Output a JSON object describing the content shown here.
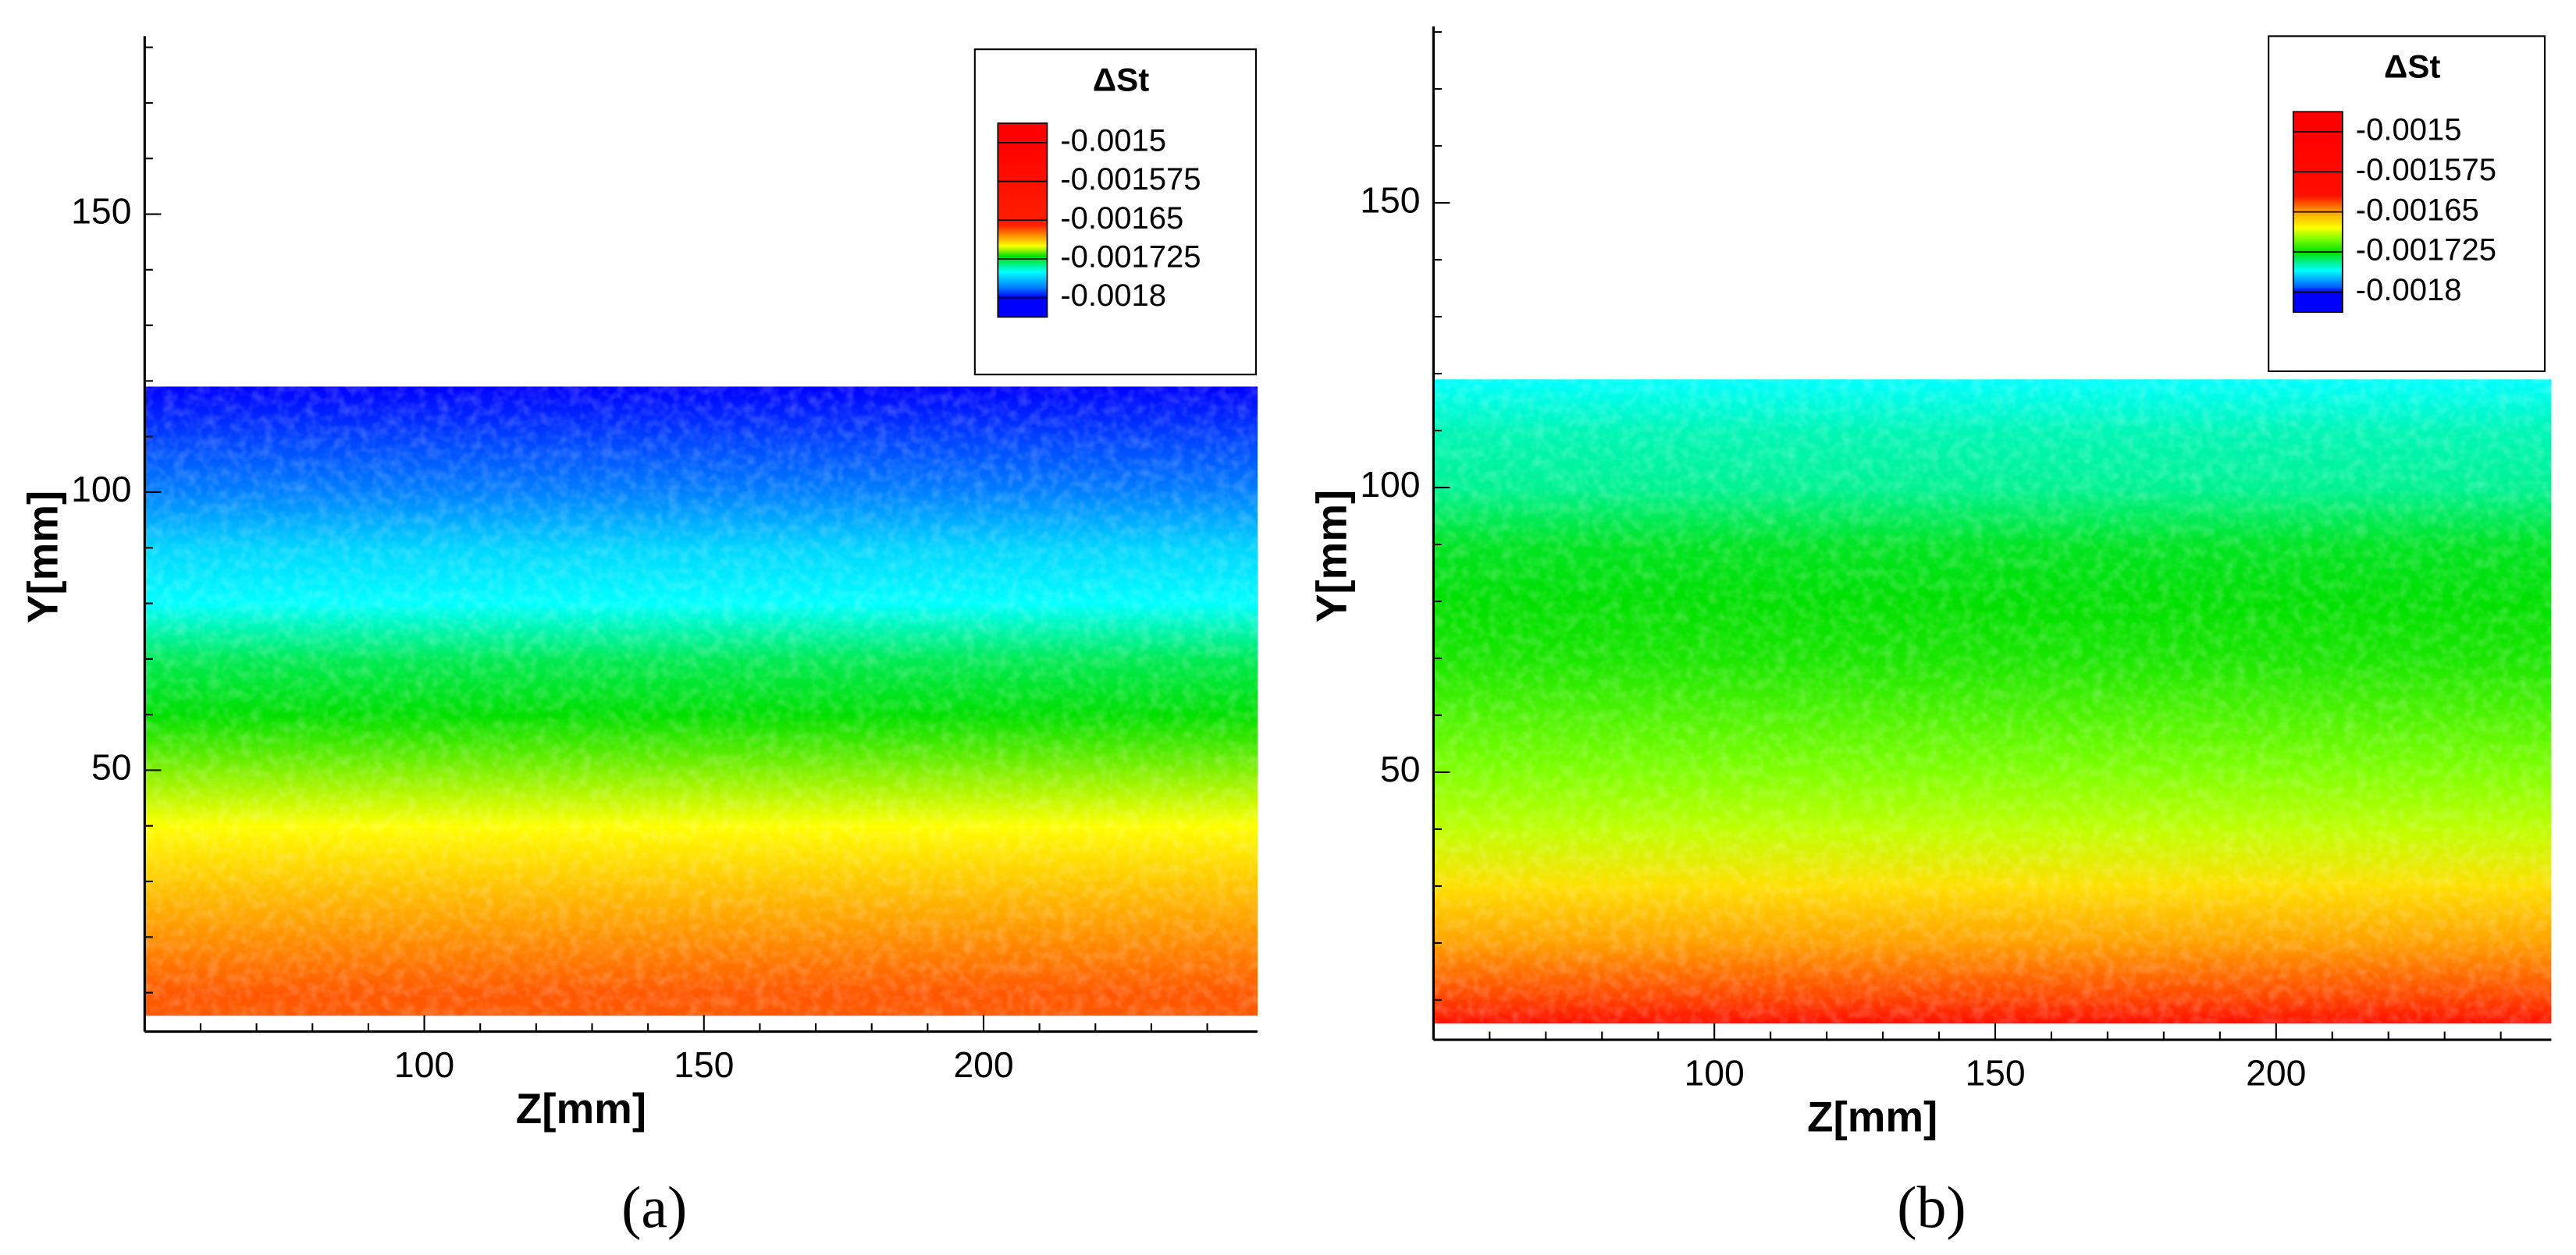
{
  "chart_data": [
    {
      "type": "contour",
      "caption": "(a)",
      "xlabel": "Z[mm]",
      "ylabel": "Y[mm]",
      "xlim": [
        50,
        249
      ],
      "ylim": [
        3,
        182
      ],
      "xticks": [
        100,
        150,
        200
      ],
      "yticks": [
        50,
        100,
        150
      ],
      "xminorticks": [
        60,
        70,
        80,
        90,
        110,
        120,
        130,
        140,
        160,
        170,
        180,
        190,
        210,
        220,
        230,
        240
      ],
      "yminorticks": [
        10,
        20,
        30,
        40,
        60,
        70,
        80,
        90,
        110,
        120,
        130,
        140,
        160,
        170,
        180
      ],
      "colorbar": {
        "title": "ΔSt",
        "levels": [
          -0.0015,
          -0.001575,
          -0.00165,
          -0.001725,
          -0.0018
        ],
        "colorstops": [
          {
            "value": -0.0015,
            "color": "#ff0000"
          },
          {
            "value": -0.00166,
            "color": "#ff2000"
          },
          {
            "value": -0.00168,
            "color": "#ff9000"
          },
          {
            "value": -0.0017,
            "color": "#ffff00"
          },
          {
            "value": -0.00172,
            "color": "#00e000"
          },
          {
            "value": -0.00175,
            "color": "#00ffff"
          },
          {
            "value": -0.00178,
            "color": "#0080ff"
          },
          {
            "value": -0.0018,
            "color": "#0000ff"
          }
        ]
      },
      "field": {
        "y": [
          119,
          110,
          100,
          90,
          80,
          70,
          60,
          50,
          40,
          30,
          20,
          10,
          6
        ],
        "values": [
          -0.0018,
          -0.00179,
          -0.00178,
          -0.00176,
          -0.00175,
          -0.00173,
          -0.00172,
          -0.00171,
          -0.0017,
          -0.00169,
          -0.00168,
          -0.00167,
          -0.00167
        ]
      }
    },
    {
      "type": "contour",
      "caption": "(b)",
      "xlabel": "Z[mm]",
      "ylabel": "Y[mm]",
      "xlim": [
        50,
        249
      ],
      "ylim": [
        3,
        181
      ],
      "xticks": [
        100,
        150,
        200
      ],
      "yticks": [
        50,
        100,
        150
      ],
      "xminorticks": [
        60,
        70,
        80,
        90,
        110,
        120,
        130,
        140,
        160,
        170,
        180,
        190,
        210,
        220,
        230,
        240
      ],
      "yminorticks": [
        10,
        20,
        30,
        40,
        60,
        70,
        80,
        90,
        110,
        120,
        130,
        140,
        160,
        170,
        180
      ],
      "colorbar": {
        "title": "ΔSt",
        "levels": [
          -0.0015,
          -0.001575,
          -0.00165,
          -0.001725,
          -0.0018
        ],
        "colorstops": [
          {
            "value": -0.0015,
            "color": "#ff0000"
          },
          {
            "value": -0.00162,
            "color": "#ff1000"
          },
          {
            "value": -0.00165,
            "color": "#ffa000"
          },
          {
            "value": -0.00168,
            "color": "#ffff00"
          },
          {
            "value": -0.0017,
            "color": "#80ff00"
          },
          {
            "value": -0.001725,
            "color": "#00e000"
          },
          {
            "value": -0.00176,
            "color": "#00ffff"
          },
          {
            "value": -0.00179,
            "color": "#0060ff"
          },
          {
            "value": -0.0018,
            "color": "#0000ff"
          }
        ]
      },
      "field": {
        "y": [
          119,
          110,
          100,
          90,
          80,
          70,
          60,
          50,
          40,
          30,
          20,
          10,
          6
        ],
        "values": [
          -0.00176,
          -0.00175,
          -0.001745,
          -0.00173,
          -0.001725,
          -0.00172,
          -0.00171,
          -0.0017,
          -0.00169,
          -0.00167,
          -0.00165,
          -0.00163,
          -0.00162
        ]
      }
    }
  ]
}
